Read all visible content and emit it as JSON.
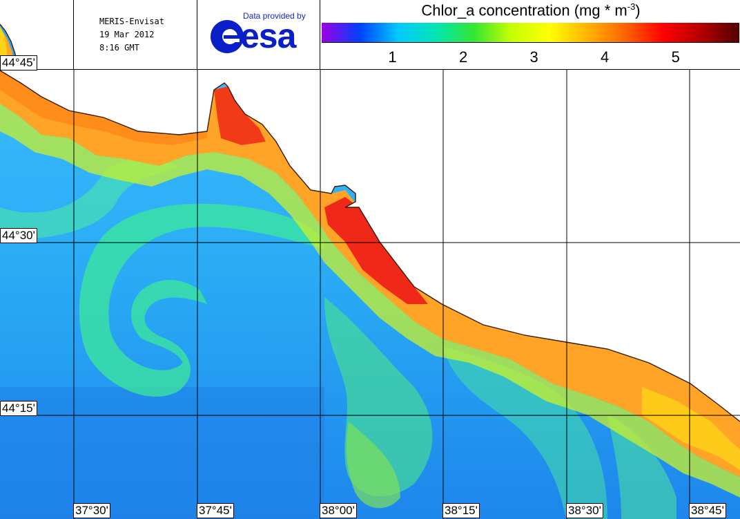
{
  "mission": {
    "sensor": "MERIS-Envisat",
    "date": "19 Mar 2012",
    "time": "8:16 GMT"
  },
  "provider": {
    "credit": "Data provided by",
    "logo_text": "esa"
  },
  "legend": {
    "title": "Chlor_a concentration (mg * m",
    "title_exponent": "-3",
    "title_close": ")",
    "ticks": [
      {
        "label": "1",
        "value": 1
      },
      {
        "label": "2",
        "value": 2
      },
      {
        "label": "3",
        "value": 3
      },
      {
        "label": "4",
        "value": 4
      },
      {
        "label": "5",
        "value": 5
      }
    ],
    "range": [
      0,
      5.9
    ],
    "colors": [
      "#9b00e6",
      "#0040ff",
      "#00c8ff",
      "#00e6b4",
      "#32e632",
      "#c8ff00",
      "#ffff00",
      "#ffb400",
      "#ff6400",
      "#ff0000",
      "#b40000",
      "#500000"
    ]
  },
  "map": {
    "latitudes": [
      "44°45'",
      "44°30'",
      "44°15'"
    ],
    "longitudes": [
      "37°30'",
      "37°45'",
      "38°00'",
      "38°15'",
      "38°30'",
      "38°45'"
    ],
    "land_color": "#ffffff",
    "sea_color": "#2aa6f0",
    "coastal_high_color": "#ff3a12",
    "coastal_mid_color": "#ffa020"
  }
}
